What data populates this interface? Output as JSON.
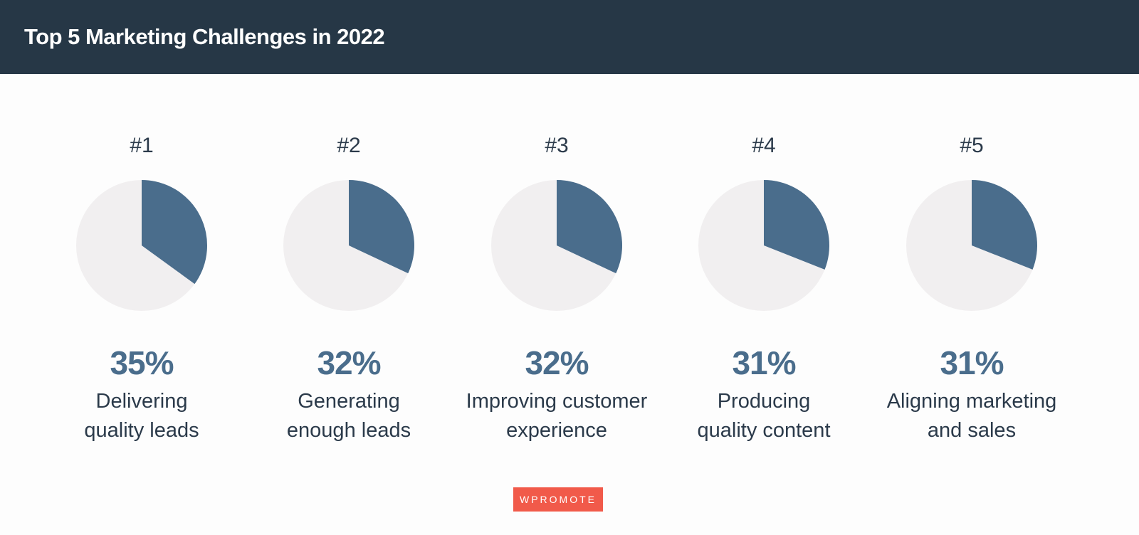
{
  "title": "Top 5 Marketing Challenges in 2022",
  "chart_data": [
    {
      "type": "pie",
      "title": "#1",
      "categories": [
        "Delivering\nquality leads"
      ],
      "values": [
        35
      ],
      "value_labels": [
        "35%"
      ],
      "colors": [
        "#4a6d8c"
      ]
    },
    {
      "type": "pie",
      "title": "#2",
      "categories": [
        "Generating\nenough leads"
      ],
      "values": [
        32
      ],
      "value_labels": [
        "32%"
      ],
      "colors": [
        "#4a6d8c"
      ]
    },
    {
      "type": "pie",
      "title": "#3",
      "categories": [
        "Improving customer\nexperience"
      ],
      "values": [
        32
      ],
      "value_labels": [
        "32%"
      ],
      "colors": [
        "#4a6d8c"
      ]
    },
    {
      "type": "pie",
      "title": "#4",
      "categories": [
        "Producing\nquality content"
      ],
      "values": [
        31
      ],
      "value_labels": [
        "31%"
      ],
      "colors": [
        "#4a6d8c"
      ]
    },
    {
      "type": "pie",
      "title": "#5",
      "categories": [
        "Aligning marketing\nand sales"
      ],
      "values": [
        31
      ],
      "value_labels": [
        "31%"
      ],
      "colors": [
        "#4a6d8c"
      ]
    }
  ],
  "logo": "WPROMOTE"
}
